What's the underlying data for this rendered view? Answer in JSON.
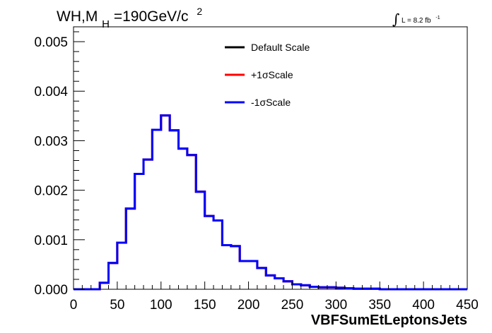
{
  "chart_data": {
    "type": "histogram",
    "title": {
      "prefix": "WH,M",
      "subscript": "H",
      "suffix": "=190GeV/c",
      "superscript": "2"
    },
    "lumi": {
      "symbol": "∫",
      "text": "L = 8.2 fb",
      "superscript": "-1"
    },
    "xlabel": "VBFSumEtLeptonsJets",
    "ylabel": "",
    "xlim": [
      0,
      450
    ],
    "ylim": [
      0,
      0.0053
    ],
    "xticks": [
      0,
      50,
      100,
      150,
      200,
      250,
      300,
      350,
      400,
      450
    ],
    "xtick_labels": [
      "0",
      "50",
      "100",
      "150",
      "200",
      "250",
      "300",
      "350",
      "400",
      "450"
    ],
    "yticks": [
      0,
      0.001,
      0.002,
      0.003,
      0.004,
      0.005
    ],
    "ytick_labels": [
      "0.000",
      "0.001",
      "0.002",
      "0.003",
      "0.004",
      "0.005"
    ],
    "bin_width": 10,
    "bin_edges_start": 0,
    "grid": false,
    "legend_position": "top-center",
    "series": [
      {
        "name": "Default Scale",
        "color": "#000000",
        "values": [
          0,
          0,
          0,
          0.00013,
          0.00053,
          0.00094,
          0.00163,
          0.00233,
          0.00262,
          0.00322,
          0.00351,
          0.00321,
          0.00284,
          0.00271,
          0.00197,
          0.00148,
          0.00139,
          0.00089,
          0.00087,
          0.00057,
          0.00057,
          0.00043,
          0.00028,
          0.00022,
          0.00016,
          0.0001,
          8e-05,
          5e-05,
          4e-05,
          4e-05,
          3e-05,
          2e-05,
          1e-05,
          1e-05,
          1e-05,
          0,
          0,
          0,
          0,
          0,
          0,
          0,
          0,
          0,
          0
        ]
      },
      {
        "name": "+1σScale",
        "color": "#ff0000",
        "values": [
          0,
          0,
          0,
          0.00013,
          0.00053,
          0.00094,
          0.00163,
          0.00233,
          0.00262,
          0.00322,
          0.00351,
          0.00321,
          0.00284,
          0.00271,
          0.00197,
          0.00148,
          0.00139,
          0.00089,
          0.00087,
          0.00057,
          0.00057,
          0.00043,
          0.00028,
          0.00022,
          0.00016,
          0.0001,
          8e-05,
          5e-05,
          4e-05,
          4e-05,
          3e-05,
          2e-05,
          1e-05,
          1e-05,
          1e-05,
          0,
          0,
          0,
          0,
          0,
          0,
          0,
          0,
          0,
          0
        ]
      },
      {
        "name": "-1σScale",
        "color": "#0000ff",
        "values": [
          0,
          0,
          0,
          0.00013,
          0.00053,
          0.00094,
          0.00163,
          0.00233,
          0.00262,
          0.00322,
          0.00351,
          0.00321,
          0.00284,
          0.00271,
          0.00197,
          0.00148,
          0.00139,
          0.00089,
          0.00087,
          0.00057,
          0.00057,
          0.00043,
          0.00028,
          0.00022,
          0.00016,
          0.0001,
          8e-05,
          5e-05,
          4e-05,
          4e-05,
          3e-05,
          2e-05,
          1e-05,
          1e-05,
          1e-05,
          0,
          0,
          0,
          0,
          0,
          0,
          0,
          0,
          0,
          0
        ]
      }
    ]
  }
}
